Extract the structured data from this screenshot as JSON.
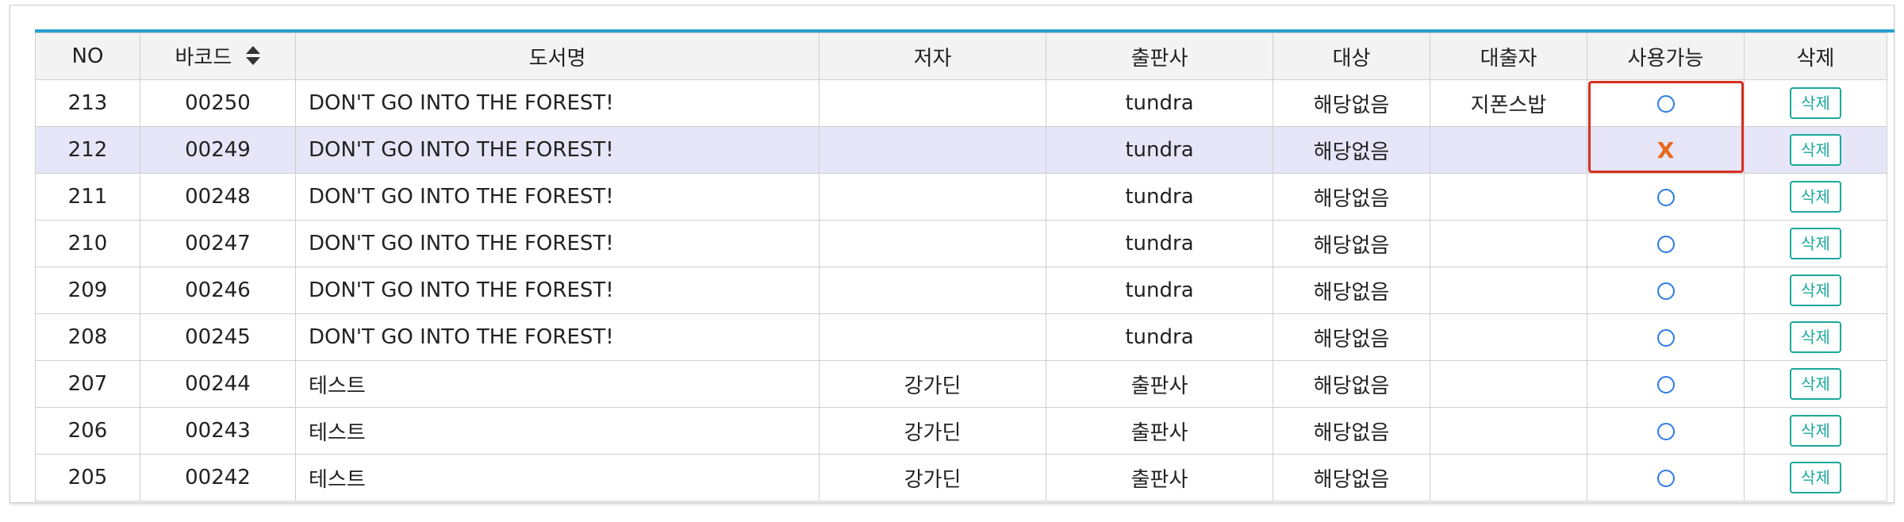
{
  "table": {
    "headers": {
      "no": "NO",
      "barcode": "바코드",
      "title": "도서명",
      "author": "저자",
      "publisher": "출판사",
      "target": "대상",
      "borrower": "대출자",
      "available": "사용가능",
      "delete": "삭제"
    },
    "rows": [
      {
        "no": "213",
        "barcode": "00250",
        "title": "DON'T GO INTO THE FOREST!",
        "author": "",
        "publisher": "tundra",
        "target": "해당없음",
        "borrower": "지폰스밥",
        "available": "O",
        "delete_label": "삭제"
      },
      {
        "no": "212",
        "barcode": "00249",
        "title": "DON'T GO INTO THE FOREST!",
        "author": "",
        "publisher": "tundra",
        "target": "해당없음",
        "borrower": "",
        "available": "X",
        "delete_label": "삭제"
      },
      {
        "no": "211",
        "barcode": "00248",
        "title": "DON'T GO INTO THE FOREST!",
        "author": "",
        "publisher": "tundra",
        "target": "해당없음",
        "borrower": "",
        "available": "O",
        "delete_label": "삭제"
      },
      {
        "no": "210",
        "barcode": "00247",
        "title": "DON'T GO INTO THE FOREST!",
        "author": "",
        "publisher": "tundra",
        "target": "해당없음",
        "borrower": "",
        "available": "O",
        "delete_label": "삭제"
      },
      {
        "no": "209",
        "barcode": "00246",
        "title": "DON'T GO INTO THE FOREST!",
        "author": "",
        "publisher": "tundra",
        "target": "해당없음",
        "borrower": "",
        "available": "O",
        "delete_label": "삭제"
      },
      {
        "no": "208",
        "barcode": "00245",
        "title": "DON'T GO INTO THE FOREST!",
        "author": "",
        "publisher": "tundra",
        "target": "해당없음",
        "borrower": "",
        "available": "O",
        "delete_label": "삭제"
      },
      {
        "no": "207",
        "barcode": "00244",
        "title": "테스트",
        "author": "강가딘",
        "publisher": "출판사",
        "target": "해당없음",
        "borrower": "",
        "available": "O",
        "delete_label": "삭제"
      },
      {
        "no": "206",
        "barcode": "00243",
        "title": "테스트",
        "author": "강가딘",
        "publisher": "출판사",
        "target": "해당없음",
        "borrower": "",
        "available": "O",
        "delete_label": "삭제"
      },
      {
        "no": "205",
        "barcode": "00242",
        "title": "테스트",
        "author": "강가딘",
        "publisher": "출판사",
        "target": "해당없음",
        "borrower": "",
        "available": "O",
        "delete_label": "삭제"
      }
    ],
    "highlighted_row": "212"
  },
  "colors": {
    "accent": "#2a9fd0",
    "highlight_row": "#e6e6f8",
    "available_o": "#2c7be5",
    "available_x": "#e8681a",
    "delete_button": "#1aa89a",
    "annotation_box": "#d7301f"
  },
  "icons": {
    "sort": "sort-updown-icon",
    "available": "circle-available-icon",
    "unavailable": "x-unavailable-icon"
  }
}
